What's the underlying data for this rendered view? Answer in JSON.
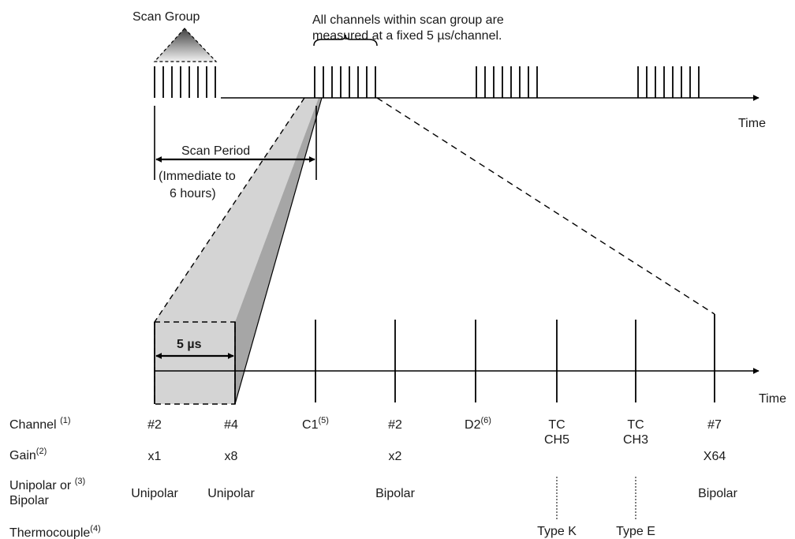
{
  "top_timeline": {
    "scan_group_label": "Scan Group",
    "note_line1": "All channels within scan group are",
    "note_line2": "measured at a fixed 5  µs/channel.",
    "time_label": "Time",
    "scan_period_label": "Scan Period",
    "scan_period_range_line1": "(Immediate to",
    "scan_period_range_line2": "6  hours)"
  },
  "bottom_timeline": {
    "interval_label": "5 µs",
    "time_label": "Time"
  },
  "row_labels": {
    "channel": "Channel",
    "channel_note": "(1)",
    "gain": "Gain",
    "gain_note": "(2)",
    "polarity_line1": "Unipolar or",
    "polarity_note": "(3)",
    "polarity_line2": "Bipolar",
    "thermocouple": "Thermocouple",
    "thermocouple_note": "(4)"
  },
  "slots": [
    {
      "channel": "#2",
      "gain": "x1",
      "polarity": "Unipolar"
    },
    {
      "channel": "#4",
      "gain": "x8",
      "polarity": "Unipolar"
    },
    {
      "channel": "C1",
      "channel_note": "(5)"
    },
    {
      "channel": "#2",
      "gain": "x2",
      "polarity": "Bipolar"
    },
    {
      "channel": "D2",
      "channel_note": "(6)"
    },
    {
      "channel_line1": "TC",
      "channel_line2": "CH5",
      "thermocouple": "Type K"
    },
    {
      "channel_line1": "TC",
      "channel_line2": "CH3",
      "thermocouple": "Type E"
    },
    {
      "channel": "#7",
      "gain": "X64",
      "polarity": "Bipolar"
    }
  ]
}
